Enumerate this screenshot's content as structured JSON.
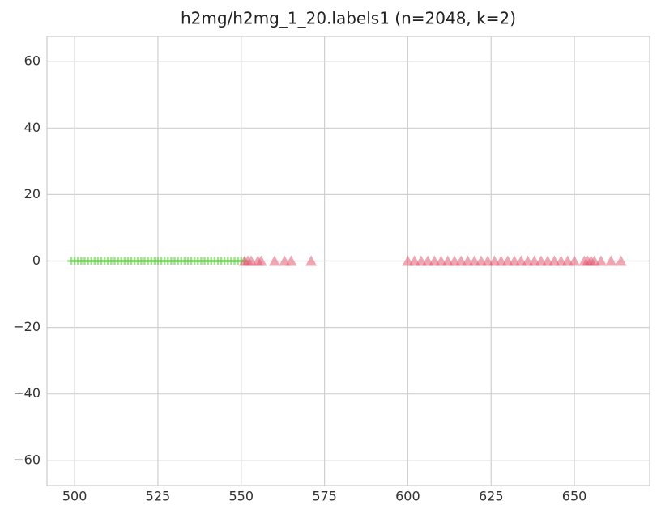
{
  "chart_data": {
    "type": "scatter",
    "title": "h2mg/h2mg_1_20.labels1 (n=2048, k=2)",
    "xlim": [
      491.7,
      672.6
    ],
    "ylim": [
      -67.6,
      67.6
    ],
    "xticks": [
      500,
      525,
      550,
      575,
      600,
      625,
      650
    ],
    "yticks": [
      {
        "value": -60,
        "label": "−60"
      },
      {
        "value": -40,
        "label": "−40"
      },
      {
        "value": -20,
        "label": "−20"
      },
      0,
      20,
      40,
      60
    ],
    "grid": true,
    "series": [
      {
        "color": "#5ecf40",
        "marker": "plus",
        "x": [
          499,
          500,
          501,
          502,
          503,
          504,
          505,
          506,
          507,
          508,
          509,
          510,
          511,
          512,
          513,
          514,
          515,
          516,
          517,
          518,
          519,
          520,
          521,
          522,
          523,
          524,
          525,
          526,
          527,
          528,
          529,
          530,
          531,
          532,
          533,
          534,
          535,
          536,
          537,
          538,
          539,
          540,
          541,
          542,
          543,
          544,
          545,
          546,
          547,
          548,
          549,
          550,
          551
        ],
        "y": [
          0,
          0,
          0,
          0,
          0,
          0,
          0,
          0,
          0,
          0,
          0,
          0,
          0,
          0,
          0,
          0,
          0,
          0,
          0,
          0,
          0,
          0,
          0,
          0,
          0,
          0,
          0,
          0,
          0,
          0,
          0,
          0,
          0,
          0,
          0,
          0,
          0,
          0,
          0,
          0,
          0,
          0,
          0,
          0,
          0,
          0,
          0,
          0,
          0,
          0,
          0,
          0,
          0
        ]
      },
      {
        "color": "#e0506a",
        "marker": "triangle",
        "x": [
          551,
          552,
          553,
          555,
          556,
          560,
          563,
          565,
          571,
          600,
          602,
          604,
          606,
          608,
          610,
          612,
          614,
          616,
          618,
          620,
          622,
          624,
          626,
          628,
          630,
          632,
          634,
          636,
          638,
          640,
          642,
          644,
          646,
          648,
          650,
          653,
          654,
          655,
          656,
          658,
          661,
          664
        ],
        "y": [
          0,
          0,
          0,
          0,
          0,
          0,
          0,
          0,
          0,
          0,
          0,
          0,
          0,
          0,
          0,
          0,
          0,
          0,
          0,
          0,
          0,
          0,
          0,
          0,
          0,
          0,
          0,
          0,
          0,
          0,
          0,
          0,
          0,
          0,
          0,
          0,
          0,
          0,
          0,
          0,
          0,
          0
        ]
      }
    ]
  }
}
